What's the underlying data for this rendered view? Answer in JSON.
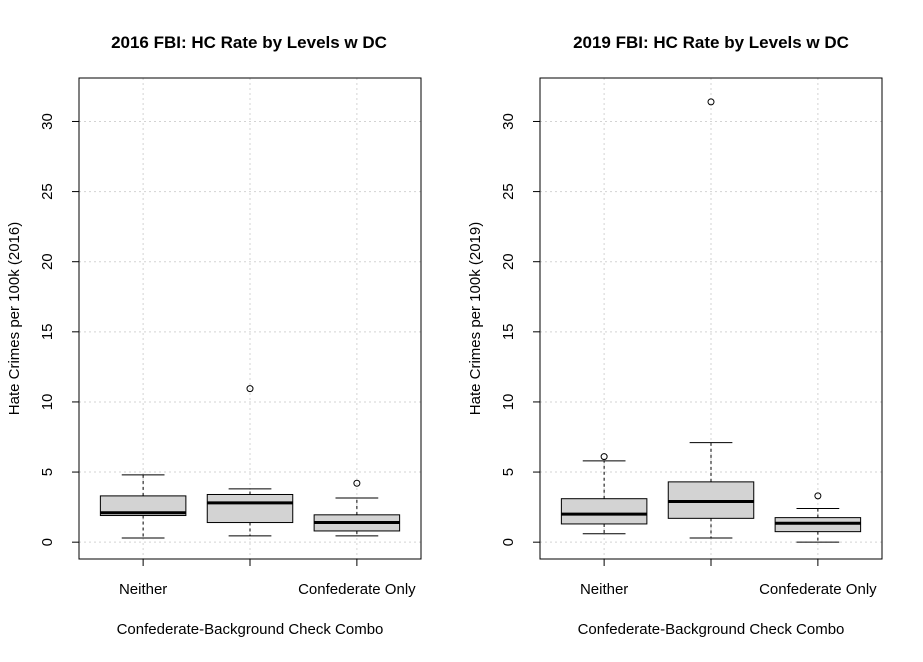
{
  "chart_data": [
    {
      "type": "boxplot",
      "title": "2016 FBI: HC Rate by Levels w DC",
      "xlabel": "Confederate-Background Check Combo",
      "ylabel": "Hate Crimes per 100k (2016)",
      "categories": [
        "Neither",
        "",
        "Confederate Only"
      ],
      "ylim": [
        -1.2,
        33.1
      ],
      "yticks": [
        0,
        5,
        10,
        15,
        20,
        25,
        30
      ],
      "grid": true,
      "boxes": [
        {
          "category": "Neither",
          "whisker_low": 0.3,
          "q1": 1.9,
          "median": 2.1,
          "q3": 3.3,
          "whisker_high": 4.8,
          "outliers": []
        },
        {
          "category": "",
          "whisker_low": 0.45,
          "q1": 1.4,
          "median": 2.8,
          "q3": 3.4,
          "whisker_high": 3.8,
          "outliers": [
            10.95
          ]
        },
        {
          "category": "Confederate Only",
          "whisker_low": 0.45,
          "q1": 0.8,
          "median": 1.4,
          "q3": 1.95,
          "whisker_high": 3.15,
          "outliers": [
            4.2
          ]
        }
      ]
    },
    {
      "type": "boxplot",
      "title": "2019 FBI: HC Rate by Levels w DC",
      "xlabel": "Confederate-Background Check Combo",
      "ylabel": "Hate Crimes per 100k (2019)",
      "categories": [
        "Neither",
        "",
        "Confederate Only"
      ],
      "ylim": [
        -1.2,
        33.1
      ],
      "yticks": [
        0,
        5,
        10,
        15,
        20,
        25,
        30
      ],
      "grid": true,
      "boxes": [
        {
          "category": "Neither",
          "whisker_low": 0.6,
          "q1": 1.3,
          "median": 2.0,
          "q3": 3.1,
          "whisker_high": 5.8,
          "outliers": [
            6.1
          ]
        },
        {
          "category": "",
          "whisker_low": 0.3,
          "q1": 1.7,
          "median": 2.9,
          "q3": 4.3,
          "whisker_high": 7.1,
          "outliers": [
            31.4
          ]
        },
        {
          "category": "Confederate Only",
          "whisker_low": 0.0,
          "q1": 0.75,
          "median": 1.35,
          "q3": 1.75,
          "whisker_high": 2.4,
          "outliers": [
            3.3
          ]
        }
      ]
    }
  ]
}
